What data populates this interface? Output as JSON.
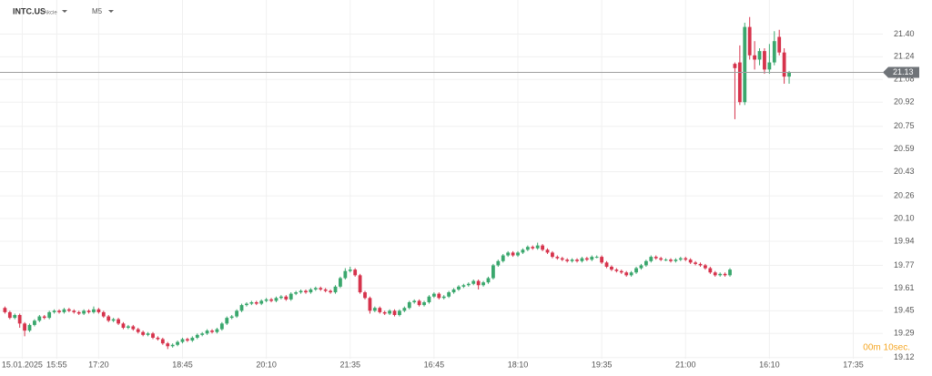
{
  "chart_data": {
    "type": "candlestick",
    "title": "INTC.US",
    "subtitle": "Akcie",
    "timeframe": "M5",
    "countdown": "00m 10sec.",
    "current_price": 21.13,
    "up_color": "#3aa76d",
    "down_color": "#d6334c",
    "grid": true,
    "ylim": [
      19.08,
      21.64
    ],
    "yticks": [
      {
        "value": 21.4,
        "label": "21.40"
      },
      21.24,
      21.08,
      20.92,
      20.75,
      20.59,
      20.43,
      20.26,
      {
        "value": 20.1,
        "label": "20.10"
      },
      19.94,
      19.77,
      19.61,
      19.45,
      19.29,
      19.12
    ],
    "xlim": [
      -1,
      178
    ],
    "xticks": [
      {
        "value": 3.5,
        "label": "15.01.2025"
      },
      {
        "value": 10.5,
        "label": "15:55"
      },
      {
        "value": 19,
        "label": "17:20"
      },
      {
        "value": 36,
        "label": "18:45"
      },
      {
        "value": 53,
        "label": "20:10"
      },
      {
        "value": 70,
        "label": "21:35"
      },
      {
        "value": 87,
        "label": "16:45"
      },
      {
        "value": 104,
        "label": "18:10"
      },
      {
        "value": 121,
        "label": "19:35"
      },
      {
        "value": 138,
        "label": "21:00"
      },
      {
        "value": 155,
        "label": "16:10"
      },
      {
        "value": 172,
        "label": "17:35"
      }
    ],
    "open": [
      19.47,
      19.44,
      19.4,
      19.42,
      19.36,
      19.31,
      19.35,
      19.38,
      19.41,
      19.4,
      19.44,
      19.45,
      19.44,
      19.46,
      19.45,
      19.44,
      19.43,
      19.45,
      19.44,
      19.46,
      19.44,
      19.41,
      19.38,
      19.39,
      19.36,
      19.33,
      19.34,
      19.32,
      19.3,
      19.28,
      19.29,
      19.26,
      19.25,
      19.22,
      19.2,
      19.21,
      19.23,
      19.25,
      19.24,
      19.26,
      19.28,
      19.29,
      19.31,
      19.3,
      19.32,
      19.36,
      19.4,
      19.41,
      19.45,
      19.49,
      19.5,
      19.51,
      19.5,
      19.52,
      19.53,
      19.52,
      19.54,
      19.55,
      19.53,
      19.57,
      19.58,
      19.59,
      19.58,
      19.6,
      19.61,
      19.6,
      19.59,
      19.58,
      19.62,
      19.68,
      19.73,
      19.74,
      19.7,
      19.58,
      19.54,
      19.45,
      19.47,
      19.44,
      19.43,
      19.45,
      19.42,
      19.45,
      19.47,
      19.51,
      19.52,
      19.49,
      19.51,
      19.55,
      19.57,
      19.54,
      19.55,
      19.58,
      19.6,
      19.62,
      19.63,
      19.64,
      19.66,
      19.63,
      19.65,
      19.68,
      19.77,
      19.8,
      19.84,
      19.86,
      19.84,
      19.86,
      19.88,
      19.9,
      19.89,
      19.91,
      19.88,
      19.86,
      19.83,
      19.82,
      19.81,
      19.8,
      19.81,
      19.8,
      19.82,
      19.81,
      19.83,
      19.83,
      19.79,
      19.76,
      19.74,
      19.73,
      19.72,
      19.7,
      19.72,
      19.75,
      19.77,
      19.8,
      19.83,
      19.82,
      19.81,
      19.81,
      19.8,
      19.81,
      19.82,
      19.81,
      19.79,
      19.78,
      19.77,
      19.75,
      19.72,
      19.7,
      19.71,
      19.7,
      21.19,
      21.2,
      20.92,
      21.45,
      21.25,
      21.22,
      21.28,
      21.15,
      21.2,
      21.38,
      21.27,
      21.1
    ],
    "high": [
      19.48,
      19.45,
      19.43,
      19.43,
      19.37,
      19.36,
      19.39,
      19.42,
      19.42,
      19.45,
      19.46,
      19.46,
      19.47,
      19.47,
      19.46,
      19.45,
      19.46,
      19.46,
      19.48,
      19.47,
      19.45,
      19.42,
      19.4,
      19.4,
      19.37,
      19.35,
      19.35,
      19.33,
      19.31,
      19.3,
      19.3,
      19.27,
      19.26,
      19.23,
      19.22,
      19.24,
      19.26,
      19.26,
      19.27,
      19.29,
      19.3,
      19.32,
      19.32,
      19.33,
      19.37,
      19.41,
      19.42,
      19.46,
      19.5,
      19.51,
      19.52,
      19.52,
      19.53,
      19.54,
      19.54,
      19.55,
      19.56,
      19.56,
      19.58,
      19.59,
      19.6,
      19.6,
      19.61,
      19.62,
      19.62,
      19.61,
      19.6,
      19.63,
      19.69,
      19.75,
      19.76,
      19.75,
      19.71,
      19.59,
      19.55,
      19.48,
      19.48,
      19.45,
      19.46,
      19.46,
      19.46,
      19.48,
      19.52,
      19.53,
      19.53,
      19.52,
      19.56,
      19.58,
      19.58,
      19.56,
      19.59,
      19.61,
      19.63,
      19.64,
      19.65,
      19.67,
      19.67,
      19.66,
      19.69,
      19.78,
      19.81,
      19.85,
      19.87,
      19.87,
      19.87,
      19.89,
      19.91,
      19.91,
      19.93,
      19.92,
      19.89,
      19.87,
      19.84,
      19.83,
      19.82,
      19.82,
      19.82,
      19.83,
      19.83,
      19.84,
      19.84,
      19.84,
      19.8,
      19.77,
      19.75,
      19.74,
      19.73,
      19.73,
      19.76,
      19.78,
      19.81,
      19.84,
      19.84,
      19.83,
      19.82,
      19.82,
      19.82,
      19.83,
      19.83,
      19.82,
      19.8,
      19.79,
      19.78,
      19.76,
      19.73,
      19.72,
      19.72,
      19.75,
      21.2,
      21.32,
      21.48,
      21.52,
      21.35,
      21.3,
      21.3,
      21.33,
      21.42,
      21.43,
      21.3,
      21.14
    ],
    "low": [
      19.43,
      19.39,
      19.39,
      19.33,
      19.27,
      19.3,
      19.34,
      19.37,
      19.39,
      19.39,
      19.43,
      19.43,
      19.43,
      19.44,
      19.43,
      19.42,
      19.42,
      19.43,
      19.43,
      19.43,
      19.4,
      19.37,
      19.37,
      19.35,
      19.32,
      19.32,
      19.31,
      19.29,
      19.27,
      19.27,
      19.25,
      19.24,
      19.21,
      19.18,
      19.19,
      19.2,
      19.22,
      19.23,
      19.23,
      19.25,
      19.27,
      19.28,
      19.29,
      19.29,
      19.31,
      19.35,
      19.39,
      19.4,
      19.44,
      19.48,
      19.49,
      19.49,
      19.49,
      19.51,
      19.51,
      19.51,
      19.53,
      19.52,
      19.52,
      19.56,
      19.57,
      19.57,
      19.57,
      19.59,
      19.59,
      19.58,
      19.57,
      19.57,
      19.61,
      19.67,
      19.72,
      19.69,
      19.57,
      19.53,
      19.43,
      19.44,
      19.43,
      19.42,
      19.42,
      19.41,
      19.41,
      19.44,
      19.46,
      19.5,
      19.48,
      19.48,
      19.5,
      19.54,
      19.53,
      19.53,
      19.54,
      19.57,
      19.59,
      19.61,
      19.62,
      19.63,
      19.6,
      19.62,
      19.64,
      19.67,
      19.76,
      19.79,
      19.83,
      19.83,
      19.83,
      19.85,
      19.87,
      19.88,
      19.88,
      19.87,
      19.85,
      19.82,
      19.81,
      19.8,
      19.79,
      19.79,
      19.79,
      19.79,
      19.8,
      19.8,
      19.82,
      19.78,
      19.75,
      19.73,
      19.72,
      19.71,
      19.69,
      19.69,
      19.71,
      19.74,
      19.76,
      19.79,
      19.81,
      19.8,
      19.8,
      19.79,
      19.79,
      19.8,
      19.8,
      19.78,
      19.77,
      19.76,
      19.74,
      19.71,
      19.69,
      19.69,
      19.69,
      19.69,
      20.8,
      20.9,
      20.9,
      21.22,
      21.15,
      21.18,
      21.12,
      21.12,
      21.18,
      21.25,
      21.05,
      21.05
    ],
    "close": [
      19.44,
      19.4,
      19.42,
      19.36,
      19.31,
      19.35,
      19.38,
      19.41,
      19.4,
      19.44,
      19.45,
      19.44,
      19.46,
      19.45,
      19.44,
      19.43,
      19.45,
      19.44,
      19.46,
      19.44,
      19.41,
      19.38,
      19.39,
      19.36,
      19.33,
      19.34,
      19.32,
      19.3,
      19.28,
      19.29,
      19.26,
      19.25,
      19.22,
      19.2,
      19.21,
      19.23,
      19.25,
      19.24,
      19.26,
      19.28,
      19.29,
      19.31,
      19.3,
      19.32,
      19.36,
      19.4,
      19.41,
      19.45,
      19.49,
      19.5,
      19.51,
      19.5,
      19.52,
      19.53,
      19.52,
      19.54,
      19.55,
      19.53,
      19.57,
      19.58,
      19.59,
      19.58,
      19.6,
      19.61,
      19.6,
      19.59,
      19.58,
      19.62,
      19.68,
      19.73,
      19.74,
      19.7,
      19.58,
      19.54,
      19.45,
      19.47,
      19.44,
      19.43,
      19.45,
      19.42,
      19.45,
      19.47,
      19.51,
      19.52,
      19.49,
      19.51,
      19.55,
      19.57,
      19.54,
      19.55,
      19.58,
      19.6,
      19.62,
      19.63,
      19.64,
      19.66,
      19.63,
      19.65,
      19.68,
      19.77,
      19.8,
      19.84,
      19.86,
      19.84,
      19.86,
      19.88,
      19.9,
      19.89,
      19.91,
      19.88,
      19.86,
      19.83,
      19.82,
      19.81,
      19.8,
      19.81,
      19.8,
      19.82,
      19.81,
      19.83,
      19.83,
      19.79,
      19.76,
      19.74,
      19.73,
      19.72,
      19.7,
      19.72,
      19.75,
      19.77,
      19.8,
      19.83,
      19.82,
      19.81,
      19.81,
      19.8,
      19.81,
      19.82,
      19.81,
      19.79,
      19.78,
      19.77,
      19.75,
      19.72,
      19.7,
      19.71,
      19.7,
      19.74,
      21.16,
      20.92,
      21.45,
      21.25,
      21.22,
      21.28,
      21.15,
      21.2,
      21.35,
      21.27,
      21.1,
      21.13
    ]
  }
}
